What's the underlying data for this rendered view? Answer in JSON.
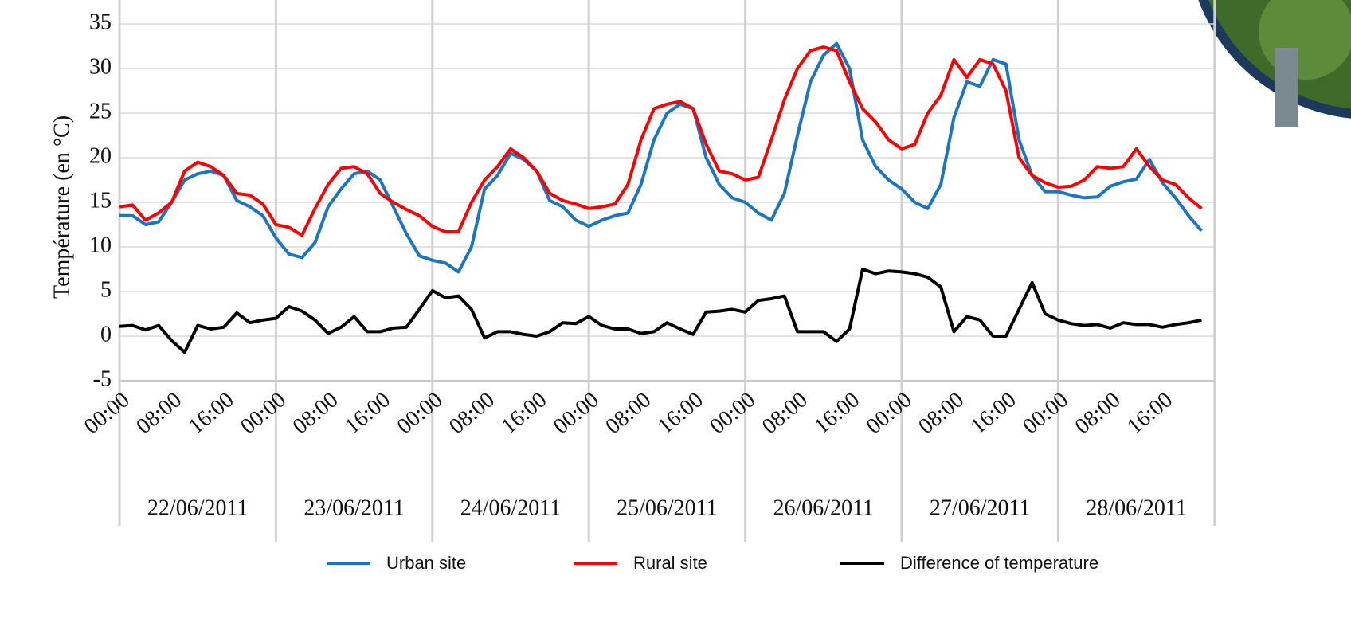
{
  "chart_data": {
    "type": "line",
    "y_label": "Température (en °C)",
    "x": [
      "00:00",
      null,
      null,
      null,
      "08:00",
      null,
      null,
      null,
      "16:00",
      null,
      null,
      null,
      "00:00",
      null,
      null,
      null,
      "08:00",
      null,
      null,
      null,
      "16:00",
      null,
      null,
      null,
      "00:00",
      null,
      null,
      null,
      "08:00",
      null,
      null,
      null,
      "16:00",
      null,
      null,
      null,
      "00:00",
      null,
      null,
      null,
      "08:00",
      null,
      null,
      null,
      "16:00",
      null,
      null,
      null,
      "00:00",
      null,
      null,
      null,
      "08:00",
      null,
      null,
      null,
      "16:00",
      null,
      null,
      null,
      "00:00",
      null,
      null,
      null,
      "08:00",
      null,
      null,
      null,
      "16:00",
      null,
      null,
      null,
      "00:00",
      null,
      null,
      null,
      "08:00",
      null,
      null,
      null,
      "16:00",
      null,
      null,
      null
    ],
    "x_groups": [
      "22/06/2011",
      "23/06/2011",
      "24/06/2011",
      "25/06/2011",
      "26/06/2011",
      "27/06/2011",
      "28/06/2011"
    ],
    "series": [
      {
        "name": "Urban site",
        "color": "#1a75c4",
        "values": [
          13.5,
          13.5,
          12.5,
          12.8,
          15,
          17.5,
          18.2,
          18.5,
          18,
          15.2,
          14.5,
          13.5,
          11,
          9.2,
          8.8,
          10.5,
          14.5,
          16.5,
          18.2,
          18.5,
          17.5,
          14.5,
          11.5,
          9,
          8.5,
          8.2,
          7.2,
          10,
          16.5,
          18,
          20.5,
          19.8,
          18.5,
          15.2,
          14.5,
          13,
          12.3,
          13,
          13.5,
          13.8,
          17,
          22,
          25,
          26,
          25.5,
          20,
          17,
          15.5,
          15,
          13.8,
          13,
          16,
          22.5,
          28.5,
          31.5,
          32.8,
          30,
          22,
          19,
          17.5,
          16.5,
          15,
          14.3,
          17,
          24.5,
          28.5,
          28,
          31,
          30.5,
          22,
          18,
          16.2,
          16.2,
          15.8,
          15.5,
          15.6,
          16.8,
          17.3,
          17.6,
          19.8,
          17.2,
          15.5,
          13.5,
          11.8
        ]
      },
      {
        "name": "Rural site",
        "color": "#ff0000",
        "values": [
          14.5,
          14.7,
          13,
          13.8,
          15,
          18.5,
          19.5,
          19,
          18,
          16,
          15.8,
          14.8,
          12.5,
          12.2,
          11.3,
          14.3,
          17,
          18.8,
          19,
          18.2,
          16,
          15,
          14.2,
          13.5,
          12.3,
          11.7,
          11.7,
          15,
          17.5,
          19,
          21,
          20,
          18.5,
          16,
          15.2,
          14.8,
          14.3,
          14.5,
          14.8,
          17,
          22,
          25.5,
          26,
          26.3,
          25.5,
          21.5,
          18.5,
          18.2,
          17.5,
          17.8,
          22,
          26.5,
          30,
          32,
          32.4,
          32,
          28.5,
          25.5,
          24,
          22,
          21,
          21.5,
          25,
          27,
          31,
          29,
          31,
          30.5,
          27.5,
          20,
          18,
          17.2,
          16.7,
          16.8,
          17.5,
          19,
          18.8,
          19,
          21,
          19,
          17.5,
          17,
          15.5,
          14.3
        ]
      },
      {
        "name": "Difference of temperature",
        "color": "#000000",
        "values": [
          1.1,
          1.2,
          0.7,
          1.2,
          -0.5,
          -1.8,
          1.2,
          0.8,
          1,
          2.6,
          1.5,
          1.8,
          2,
          3.3,
          2.8,
          1.8,
          0.3,
          1,
          2.2,
          0.5,
          0.5,
          0.9,
          1,
          3,
          5.1,
          4.3,
          4.5,
          3,
          -0.2,
          0.5,
          0.5,
          0.2,
          0,
          0.5,
          1.5,
          1.4,
          2.2,
          1.2,
          0.8,
          0.8,
          0.3,
          0.5,
          1.5,
          0.8,
          0.2,
          2.7,
          2.8,
          3,
          2.7,
          4,
          4.2,
          4.5,
          0.5,
          0.5,
          0.5,
          -0.6,
          0.8,
          7.5,
          7,
          7.3,
          7.2,
          7,
          6.6,
          5.5,
          0.5,
          2.2,
          1.8,
          0,
          0,
          3,
          6,
          2.5,
          1.8,
          1.4,
          1.2,
          1.3,
          0.9,
          1.5,
          1.3,
          1.3,
          1,
          1.3,
          1.5,
          1.8
        ]
      }
    ],
    "ylim": [
      -5,
      35
    ],
    "yticks": [
      -5,
      0,
      5,
      10,
      15,
      20,
      25,
      30,
      35
    ],
    "grid": true,
    "legend": "bottom"
  }
}
